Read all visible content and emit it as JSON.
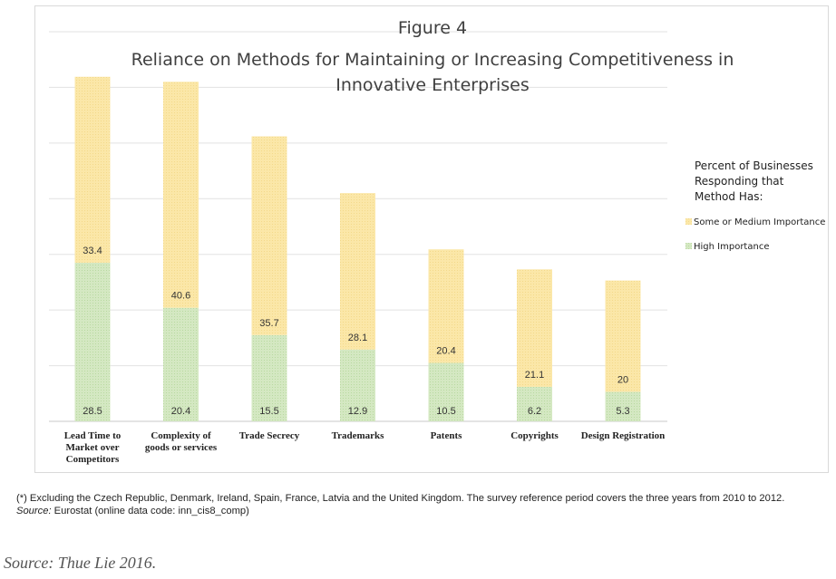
{
  "chart_data": {
    "type": "bar",
    "stacked": true,
    "title_lines": [
      "Figure 4",
      "Reliance on Methods for Maintaining or Increasing Competitiveness in",
      "Innovative Enterprises"
    ],
    "categories": [
      [
        "Lead Time to",
        "Market over",
        "Competitors"
      ],
      [
        "Complexity of",
        "goods or services"
      ],
      [
        "Trade Secrecy"
      ],
      [
        "Trademarks"
      ],
      [
        "Patents"
      ],
      [
        "Copyrights"
      ],
      [
        "Design Registration"
      ]
    ],
    "series": [
      {
        "name": "High Importance",
        "color": "#d4e8c2",
        "values": [
          28.5,
          20.4,
          15.5,
          12.9,
          10.5,
          6.2,
          5.3
        ]
      },
      {
        "name": "Some or Medium Importance",
        "color": "#fbe7a8",
        "values": [
          33.4,
          40.6,
          35.7,
          28.1,
          20.4,
          21.1,
          20
        ]
      }
    ],
    "value_labels": {
      "High Importance": [
        "28.5",
        "20.4",
        "15.5",
        "12.9",
        "10.5",
        "6.2",
        "5.3"
      ],
      "Some or Medium Importance": [
        "33.4",
        "40.6",
        "35.7",
        "28.1",
        "20.4",
        "21.1",
        "20"
      ]
    },
    "legend_title_lines": [
      "Percent of Businesses",
      "Responding that",
      "Method Has:"
    ],
    "legend_entries": [
      "Some or Medium Importance",
      "High Importance"
    ],
    "legend_position": "right",
    "ylim": [
      0,
      70
    ],
    "grid": true
  },
  "footnote": {
    "line1": "(*) Excluding the Czech Republic, Denmark, Ireland, Spain, France, Latvia and the United Kingdom. The survey reference period covers the three years from 2010 to 2012.",
    "source_label": "Source:",
    "source_text": " Eurostat (online data code: inn_cis8_comp)"
  },
  "caption": "Source: Thue Lie 2016."
}
